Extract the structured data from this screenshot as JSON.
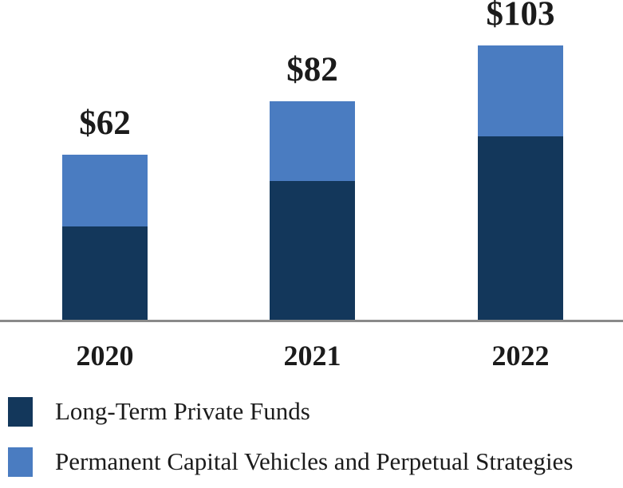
{
  "chart_data": {
    "type": "bar",
    "stacked": true,
    "title": "",
    "categories": [
      "2020",
      "2021",
      "2022"
    ],
    "series": [
      {
        "name": "Long-Term Private Funds",
        "color": "#13375B",
        "values": [
          35,
          52,
          69
        ]
      },
      {
        "name": "Permanent Capital Vehicles and Perpetual Strategies",
        "color": "#4A7CC1",
        "values": [
          27,
          30,
          34
        ]
      }
    ],
    "totals": [
      62,
      82,
      103
    ],
    "total_labels": [
      "$62",
      "$82",
      "$103"
    ],
    "xlabel": "",
    "ylabel": "",
    "ylim": [
      0,
      120
    ],
    "grid": false,
    "legend_position": "bottom-left",
    "axis_line_color": "#8A8A8A",
    "text_color": "#1B1B1B"
  }
}
